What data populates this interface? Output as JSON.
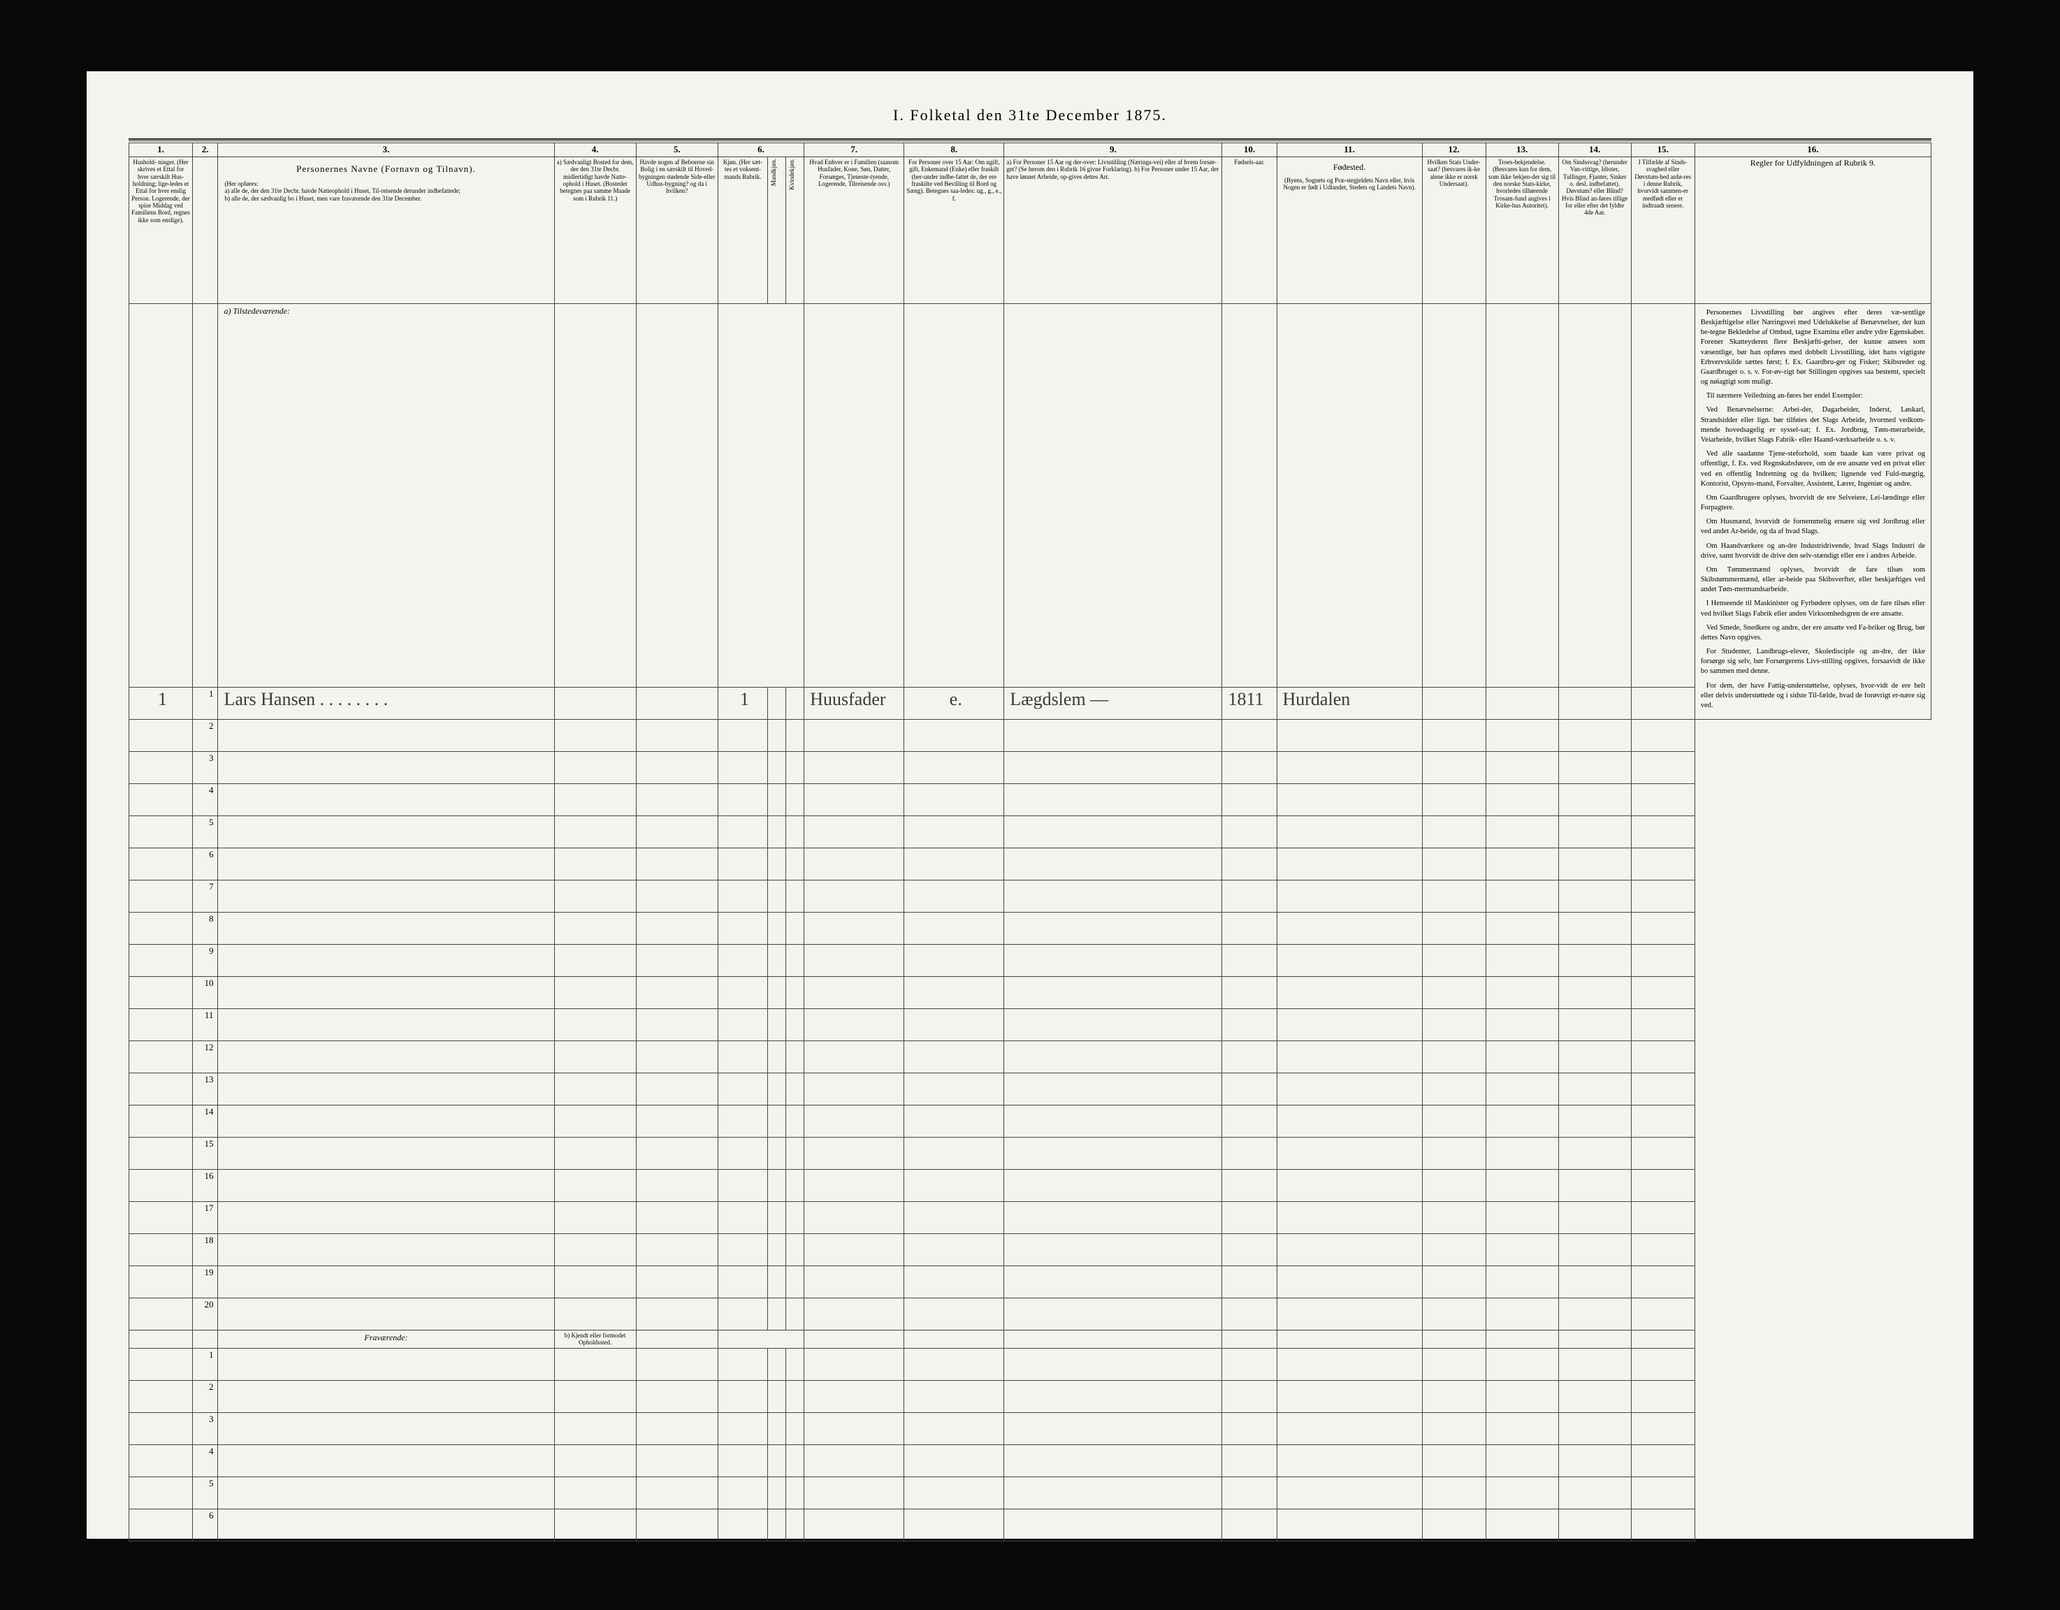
{
  "title": "I.  Folketal den 31te December 1875.",
  "columns": {
    "c1": {
      "num": "1.",
      "head": "Hushold-\nninger.\n(Her skrives et Ettal for hver særskilt Hus-holdning; lige-ledes et Ettal for hver enslig Person. Logerende, der spise Middag ved Familiens Bord, regnes ikke som enslige)."
    },
    "c2": {
      "num": "2.",
      "head": ""
    },
    "c3": {
      "num": "3.",
      "head_title": "Personernes Navne (Fornavn og Tilnavn).",
      "head_body": "(Her opføres:\na) alle de, der den 31te Decbr. havde Natteophold i Huset, Til-reisende derunder indbefattede;\nb) alle de, der sædvanlig bo i Huset, men vare fraværende den 31te December."
    },
    "c4": {
      "num": "4.",
      "head": "a) Sædvanligt Bosted for dem, der den 31te Decbr. midlertidigt havde Natte-ophold i Huset. (Bostedet betegnes paa samme Maade som i Rubrik 11.)"
    },
    "c5": {
      "num": "5.",
      "head": "Havde nogen af Beboerne sin Bolig i en særskilt til Hoved-bygningen stødende Side-eller Udhus-bygning? og da i hvilken?"
    },
    "c6": {
      "num": "6.",
      "head": "Kjøn.\n(Her sæt-tes et voksent-mands Rubrik.",
      "sub1": "Mandkjøn.",
      "sub2": "Kvindekjøn."
    },
    "c7": {
      "num": "7.",
      "head": "Hvad Enhver er i Familien\n(saasom Husfader, Kone, Søn, Datter, Forsørges, Tjeneste-tyende, Logerende, Tilreisende osv.)"
    },
    "c8": {
      "num": "8.",
      "head": "For Personer over 15 Aar: Om ugift, gift, Enkemand (Enke) eller fraskilt (her-under indbe-fattet de, der ere fraskilte ved Bevilling til Bord og Sæng). Betegnes saa-ledes: ug., g., e., f."
    },
    "c9": {
      "num": "9.",
      "head": "a) For Personer 15 Aar og der-over: Livsstilling (Nærings-vei) eller af hvem forsør-get? (Se herom den i Rubrik 16 givne Forklaring).\nb) For Personer under 15 Aar, der have lønnet Arbeide, op-gives dettes Art."
    },
    "c10": {
      "num": "10.",
      "head": "Fødsels-aar."
    },
    "c11": {
      "num": "11.",
      "head_title": "Fødested.",
      "head_body": "(Byens, Sognets og Præ-stegjeldets Navn eller, hvis Nogen er født i Udlandet, Stedets og Landets Navn)."
    },
    "c12": {
      "num": "12.",
      "head": "Hvilken Stats Under-saat?\n(besvares ik-ke alene ikke er norsk Undersaat)."
    },
    "c13": {
      "num": "13.",
      "head": "Troes-bekjendelse.\n(Besvares kun for dem, som ikke bekjen-der sig til den norske Stats-kirke, hvorledes tilhørende Trosam-fund angives i Kirke-hus Autoritet)."
    },
    "c14": {
      "num": "14.",
      "head": "Om Sindssvag? (herunder Van-vittige, Idioter, Tullinger, Fjanter, Sinker o. desl. indbefattet). Døvstum? eller Blind? Hvis Blind an-føres tillige for eller efter det fyldte 4de Aar."
    },
    "c15": {
      "num": "15.",
      "head": "I Tilfælde af Sinds-svaghed eller Døvstum-hed anfø-res i denne Rubrik, hvorvidt sammen-er medfødt eller er indtraadt senere."
    },
    "c16": {
      "num": "16.",
      "head": "Regler for Udfyldningen af Rubrik 9."
    }
  },
  "section_a": "a) Tilstedeværende:",
  "section_b": "Fraværende:",
  "section_b_col4": "b) Kjendt eller formodet Opholdssted.",
  "rows_a_count": 20,
  "rows_b_count": 6,
  "entry": {
    "hush": "1",
    "num": "1",
    "name": "Lars Hansen . . . . . . . .",
    "col6": "1",
    "col7": "Huusfader",
    "col8": "e.",
    "col9": "Lægdslem —",
    "col10": "1811",
    "col11": "Hurdalen"
  },
  "instructions": {
    "p1": "Personernes Livsstilling bør angives efter deres væ-sentlige Beskjæftigelse eller Næringsvei med Udelukkelse af Benævnelser, der kun be-tegne Bekledelse af Ombud, tagne Examina eller andre ydre Egenskaber. Forener Skatteyderen flere Beskjæfti-gelser, der kunne ansees som væsentlige, bør han opføres med dobbelt Livsstilling, idet hans vigtigste Erhvervskilde sættes først; f. Ex. Gaardbru-ger og Fisker; Skibsreder og Gaardbruger o. s. v. For-øv-rigt bør Stillingen opgives saa bestemt, specielt og nøiagtigt som muligt.",
    "p2": "Til nærmere Veiledning an-føres her endel Exempler:",
    "p3": "Ved Benævnelserne: Arbei-der, Dagarbeider, Inderst, Løskarl, Strandsidder eller lign. bør tilføies det Slags Arbeide, hvormed vedkom-mende hovedsagelig er syssel-sat; f. Ex. Jordbrug, Tøm-merarbeide, Veiarbeide, hvilket Slags Fabrik- eller Haand-værksarbeide o. s. v.",
    "p4": "Ved alle saadanne Tjene-steforhold, som baade kan være privat og offentligt, f. Ex. ved Regnskabsførere, om de ere ansatte ved en privat eller ved en offentlig Indretning og da hvilken; lignende ved Fuld-mægtig, Kontorist, Opsyns-mand, Forvalter, Assistent, Lærer, Ingeniør og andre.",
    "p5": "Om Gaardbrugere oplyses, hvorvidt de ere Selveiere, Lei-lændinge eller Forpagtere.",
    "p6": "Om Husmænd, hvorvidt de fornemmelig ernære sig ved Jordbrug eller ved andet Ar-beide, og da af hvad Slags.",
    "p7": "Om Haandværkere og an-dre Industridrivende, hvad Slags Industri de drive, samt hvorvidt de drive den selv-stændigt eller ere i andres Arbeide.",
    "p8": "Om Tømmermænd oplyses, hvorvidt de fare tilsøs som Skibstømmermænd, eller ar-beide paa Skibsverfter, eller beskjæftiges ved andet Tøm-mermandsarbeide.",
    "p9": "I Henseende til Maskinister og Fyrbødere oplyses, om de fare tilsøs eller ved hvilket Slags Fabrik eller anden Virksomhedsgren de ere ansatte.",
    "p10": "Ved Smede, Snedkere og andre, der ere ansatte ved Fa-briker og Brug, bør dettes Navn opgives.",
    "p11": "For Studenter, Landbrugs-elever, Skoledisciple og an-dre, der ikke forsørge sig selv, bør Forsørgerens Livs-stilling opgives, forsaavidt de ikke bo sammen med denne.",
    "p12": "For dem, der have Fattig-understøttelse, oplyses, hvor-vidt de ere helt eller delvis understøttede og i sidste Til-fælde, hvad de forøvrigt er-nære sig ved."
  }
}
